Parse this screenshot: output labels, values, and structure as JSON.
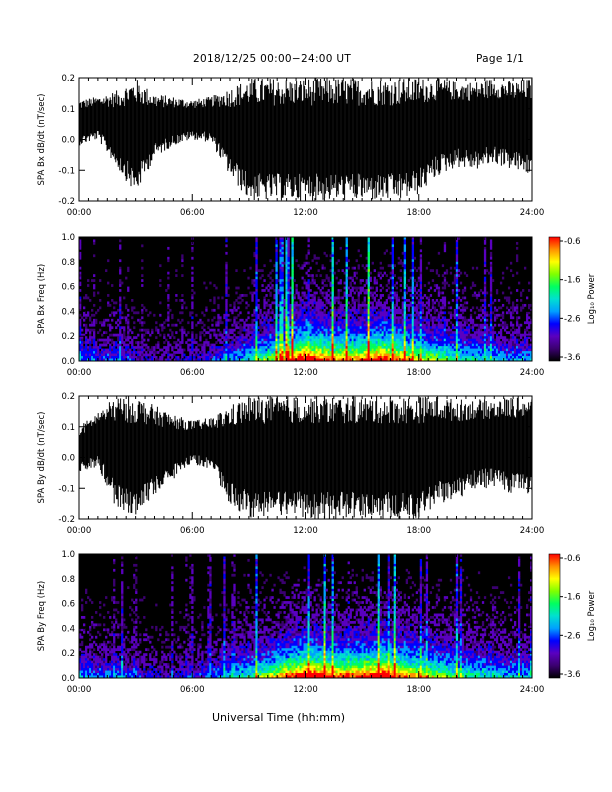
{
  "header": {
    "date_range": "2018/12/25  00:00−24:00 UT",
    "page": "Page 1/1"
  },
  "xlabel": "Universal Time (hh:mm)",
  "x_ticks": [
    "00:00",
    "06:00",
    "12:00",
    "18:00",
    "24:00"
  ],
  "colorbar": {
    "label": "Log₁₀ Power",
    "ticks": [
      "-0.6",
      "-1.6",
      "-2.6",
      "-3.6"
    ],
    "range": [
      -3.6,
      -0.6
    ],
    "colors": [
      "#000000",
      "#3b0070",
      "#5a00c0",
      "#0000ff",
      "#00a0ff",
      "#00e0d0",
      "#00ff60",
      "#7fff00",
      "#ffff00",
      "#ff9000",
      "#ff0000"
    ]
  },
  "chart_data": [
    {
      "type": "line",
      "ylabel": "SPA Bx dB/dt (nT/sec)",
      "x_range_hours": [
        0,
        24
      ],
      "ylim": [
        -0.2,
        0.2
      ],
      "y_ticks": [
        "0.2",
        "0.1",
        "0.0",
        "-0.1",
        "-0.2"
      ],
      "x": [
        0,
        1,
        2,
        3,
        4,
        5,
        6,
        7,
        8,
        9,
        10,
        11,
        12,
        13,
        14,
        15,
        16,
        17,
        18,
        19,
        20,
        21,
        22,
        23,
        24
      ],
      "upper_envelope": [
        0.13,
        0.14,
        0.16,
        0.2,
        0.15,
        0.14,
        0.13,
        0.14,
        0.17,
        0.2,
        0.2,
        0.2,
        0.2,
        0.2,
        0.2,
        0.2,
        0.2,
        0.2,
        0.2,
        0.2,
        0.19,
        0.19,
        0.2,
        0.19,
        0.2
      ],
      "lower_envelope": [
        -0.02,
        0.0,
        -0.09,
        -0.18,
        -0.06,
        -0.02,
        0.0,
        -0.01,
        -0.12,
        -0.2,
        -0.2,
        -0.2,
        -0.2,
        -0.2,
        -0.2,
        -0.2,
        -0.2,
        -0.2,
        -0.18,
        -0.12,
        -0.09,
        -0.1,
        -0.08,
        -0.1,
        -0.12
      ]
    },
    {
      "type": "heatmap",
      "ylabel": "SPA Bx Freq (Hz)",
      "x_range_hours": [
        0,
        24
      ],
      "ylim": [
        0,
        1.0
      ],
      "y_ticks": [
        "1.0",
        "0.8",
        "0.6",
        "0.4",
        "0.2",
        "0.0"
      ],
      "activity_by_hour": [
        0.35,
        0.25,
        0.3,
        0.2,
        0.15,
        0.15,
        0.2,
        0.25,
        0.35,
        0.45,
        0.6,
        0.8,
        1.0,
        0.85,
        0.8,
        0.85,
        0.95,
        0.8,
        0.7,
        0.6,
        0.5,
        0.45,
        0.4,
        0.35
      ]
    },
    {
      "type": "line",
      "ylabel": "SPA By dB/dt (nT/sec)",
      "x_range_hours": [
        0,
        24
      ],
      "ylim": [
        -0.2,
        0.2
      ],
      "y_ticks": [
        "0.2",
        "0.1",
        "0.0",
        "-0.1",
        "-0.2"
      ],
      "x": [
        0,
        1,
        2,
        3,
        4,
        5,
        6,
        7,
        8,
        9,
        10,
        11,
        12,
        13,
        14,
        15,
        16,
        17,
        18,
        19,
        20,
        21,
        22,
        23,
        24
      ],
      "upper_envelope": [
        0.1,
        0.15,
        0.2,
        0.2,
        0.17,
        0.14,
        0.12,
        0.13,
        0.17,
        0.2,
        0.2,
        0.2,
        0.2,
        0.2,
        0.2,
        0.2,
        0.2,
        0.2,
        0.2,
        0.2,
        0.19,
        0.19,
        0.19,
        0.2,
        0.2
      ],
      "lower_envelope": [
        -0.05,
        -0.03,
        -0.17,
        -0.2,
        -0.12,
        -0.07,
        -0.02,
        -0.04,
        -0.15,
        -0.2,
        -0.2,
        -0.2,
        -0.2,
        -0.2,
        -0.2,
        -0.2,
        -0.2,
        -0.2,
        -0.2,
        -0.15,
        -0.14,
        -0.1,
        -0.1,
        -0.12,
        -0.12
      ]
    },
    {
      "type": "heatmap",
      "ylabel": "SPA By Freq (Hz)",
      "x_range_hours": [
        0,
        24
      ],
      "ylim": [
        0,
        1.0
      ],
      "y_ticks": [
        "1.0",
        "0.8",
        "0.6",
        "0.4",
        "0.2",
        "0.0"
      ],
      "activity_by_hour": [
        0.4,
        0.3,
        0.35,
        0.25,
        0.2,
        0.2,
        0.25,
        0.3,
        0.4,
        0.5,
        0.65,
        0.85,
        1.0,
        0.9,
        0.85,
        0.9,
        1.0,
        0.85,
        0.75,
        0.65,
        0.55,
        0.5,
        0.45,
        0.4
      ]
    }
  ]
}
